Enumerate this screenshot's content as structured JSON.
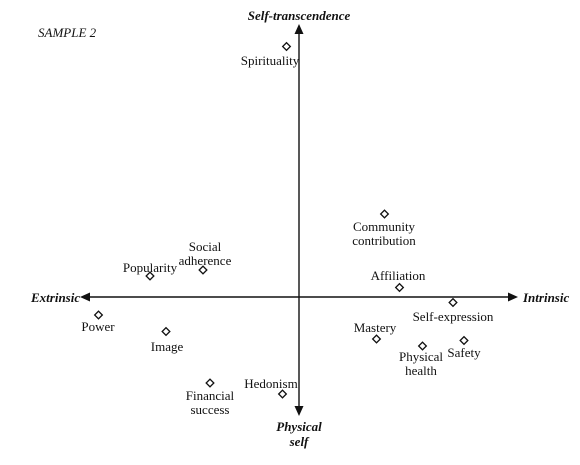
{
  "title": "SAMPLE 2",
  "axes": {
    "top": [
      "Self-transcendence"
    ],
    "bottom": [
      "Physical",
      "self"
    ],
    "left": [
      "Extrinsic"
    ],
    "right": [
      "Intrinsic"
    ]
  },
  "items": [
    {
      "id": "spirituality",
      "label": [
        "Spirituality"
      ]
    },
    {
      "id": "community-contribution",
      "label": [
        "Community",
        "contribution"
      ]
    },
    {
      "id": "social-adherence",
      "label": [
        "Social",
        "adherence"
      ]
    },
    {
      "id": "popularity",
      "label": [
        "Popularity"
      ]
    },
    {
      "id": "affiliation",
      "label": [
        "Affiliation"
      ]
    },
    {
      "id": "power",
      "label": [
        "Power"
      ]
    },
    {
      "id": "self-expression",
      "label": [
        "Self-expression"
      ]
    },
    {
      "id": "image",
      "label": [
        "Image"
      ]
    },
    {
      "id": "mastery",
      "label": [
        "Mastery"
      ]
    },
    {
      "id": "safety",
      "label": [
        "Safety"
      ]
    },
    {
      "id": "physical-health",
      "label": [
        "Physical",
        "health"
      ]
    },
    {
      "id": "financial-success",
      "label": [
        "Financial",
        "success"
      ]
    },
    {
      "id": "hedonism",
      "label": [
        "Hedonism"
      ]
    }
  ]
}
